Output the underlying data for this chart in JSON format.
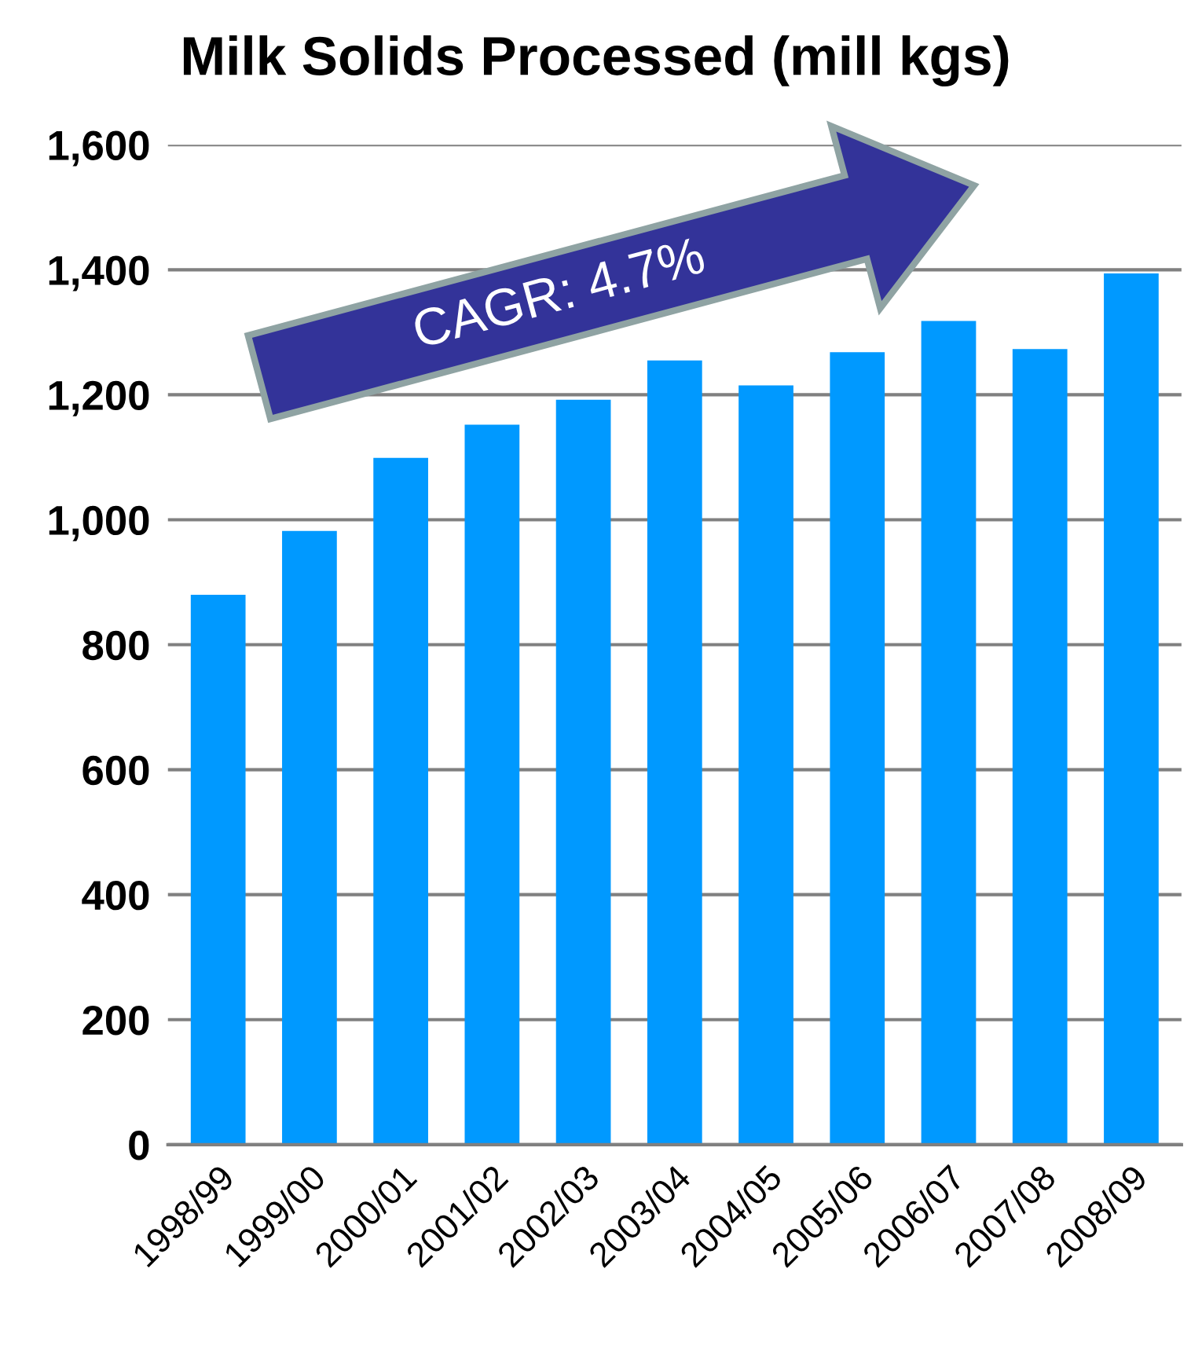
{
  "chart_data": {
    "type": "bar",
    "title": "Milk Solids Processed (mill kgs)",
    "categories": [
      "1998/99",
      "1999/00",
      "2000/01",
      "2001/02",
      "2002/03",
      "2003/04",
      "2004/05",
      "2005/06",
      "2006/07",
      "2007/08",
      "2008/09"
    ],
    "values": [
      880,
      982,
      1099,
      1152,
      1192,
      1255,
      1215,
      1268,
      1318,
      1273,
      1394
    ],
    "color": "#0099ff",
    "ylim": [
      0,
      1600
    ],
    "yticks": [
      0,
      200,
      400,
      600,
      800,
      {
        "value": 1000,
        "label": "1,000"
      },
      {
        "value": 1200,
        "label": "1,200"
      },
      {
        "value": 1400,
        "label": "1,400"
      },
      {
        "value": 1600,
        "label": "1,600"
      }
    ],
    "grid": "y",
    "annotations": [
      "CAGR: 4.7%"
    ]
  }
}
